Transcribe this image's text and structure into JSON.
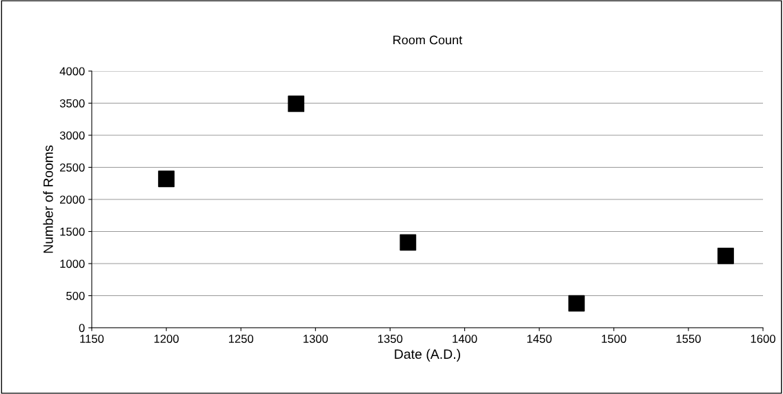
{
  "chart_data": {
    "type": "scatter",
    "title": "Room Count",
    "xlabel": "Date (A.D.)",
    "ylabel": "Number of Rooms",
    "x": [
      1200,
      1287,
      1362,
      1475,
      1575
    ],
    "series": [
      {
        "color": "#000000",
        "values": [
          2320,
          3490,
          1330,
          380,
          1120
        ]
      }
    ],
    "marker": "square",
    "xlim": [
      1150,
      1600
    ],
    "xticks": [
      1150,
      1200,
      1250,
      1300,
      1350,
      1400,
      1450,
      1500,
      1550,
      1600
    ],
    "ylim": [
      0,
      4000
    ],
    "yticks": [
      0,
      500,
      1000,
      1500,
      2000,
      2500,
      3000,
      3500,
      4000
    ],
    "grid": "y"
  }
}
